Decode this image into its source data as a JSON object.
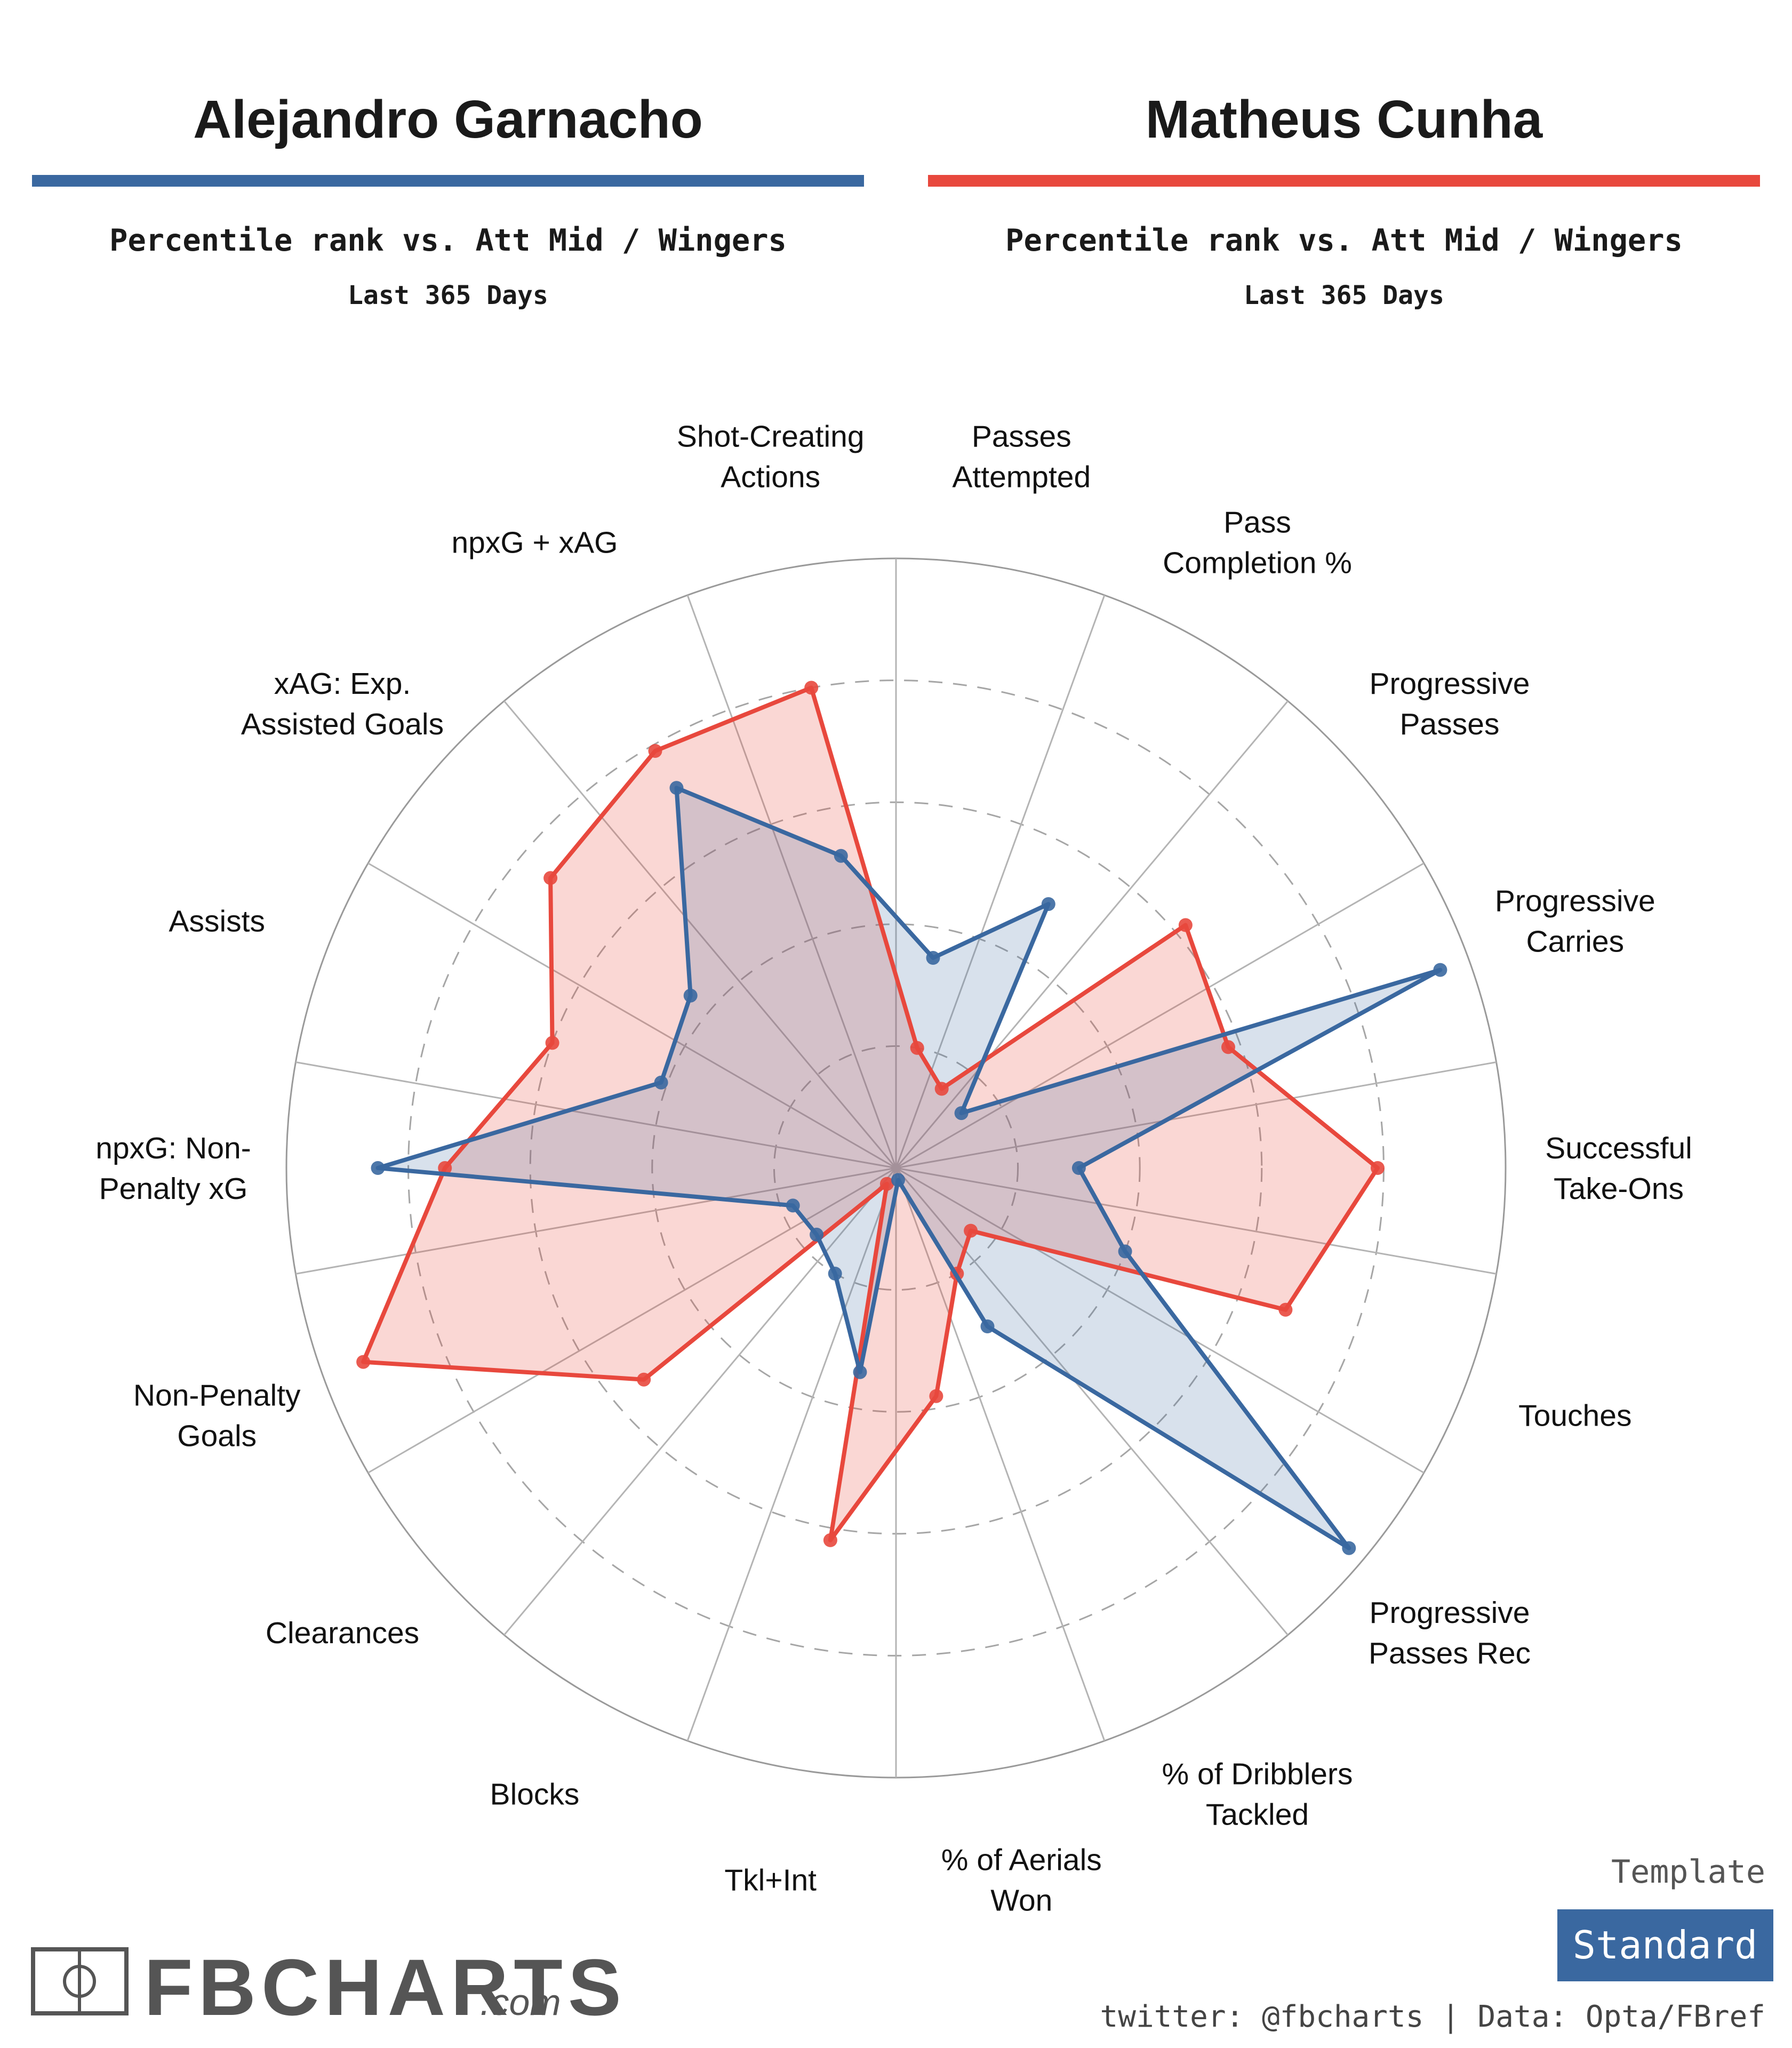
{
  "header": {
    "players": [
      {
        "name": "Alejandro Garnacho",
        "subtitle": "Percentile rank vs. Att Mid / Wingers",
        "period": "Last 365 Days",
        "color": "#3a68a0"
      },
      {
        "name": "Matheus Cunha",
        "subtitle": "Percentile rank vs. Att Mid / Wingers",
        "period": "Last 365 Days",
        "color": "#e8483d"
      }
    ]
  },
  "chart_data": {
    "type": "radar",
    "scale": [
      0,
      100
    ],
    "gridlines": [
      20,
      40,
      60,
      80,
      100
    ],
    "categories": [
      "Passes Attempted",
      "Pass Completion %",
      "Progressive Passes",
      "Progressive Carries",
      "Successful Take-Ons",
      "Touches",
      "Progressive Passes Rec",
      "% of Dribblers Tackled",
      "% of Aerials Won",
      "Tkl+Int",
      "Blocks",
      "Clearances",
      "Non-Penalty Goals",
      "npxG: Non-Penalty xG",
      "Assists",
      "xAG: Exp. Assisted Goals",
      "npxG + xAG",
      "Shot-Creating Actions"
    ],
    "category_lines": [
      [
        "Passes",
        "Attempted"
      ],
      [
        "Pass",
        "Completion %"
      ],
      [
        "Progressive",
        "Passes"
      ],
      [
        "Progressive",
        "Carries"
      ],
      [
        "Successful",
        "Take-Ons"
      ],
      [
        "Touches"
      ],
      [
        "Progressive",
        "Passes Rec"
      ],
      [
        "% of Dribblers",
        "Tackled"
      ],
      [
        "% of Aerials",
        "Won"
      ],
      [
        "Tkl+Int"
      ],
      [
        "Blocks"
      ],
      [
        "Clearances"
      ],
      [
        "Non-Penalty",
        "Goals"
      ],
      [
        "npxG: Non-",
        "Penalty xG"
      ],
      [
        "Assists"
      ],
      [
        "xAG: Exp.",
        "Assisted Goals"
      ],
      [
        "npxG + xAG"
      ],
      [
        "Shot-Creating",
        "Actions"
      ]
    ],
    "series": [
      {
        "name": "Matheus Cunha",
        "color": "#e8483d",
        "values": [
          20,
          15,
          62,
          58,
          79,
          68,
          16,
          20,
          38,
          62,
          3,
          54,
          93,
          74,
          60,
          74,
          79,
          80
        ]
      },
      {
        "name": "Alejandro Garnacho",
        "color": "#3a68a0",
        "values": [
          35,
          50,
          14,
          95,
          30,
          40,
          97,
          30,
          2,
          34,
          20,
          17,
          18,
          85,
          41,
          44,
          72,
          52
        ]
      }
    ]
  },
  "template": {
    "label": "Template",
    "value": "Standard",
    "color": "#3a68a0"
  },
  "footer": {
    "logo": "FBCHARTS",
    "logo_suffix": ".com",
    "credit": "twitter: @fbcharts | Data: Opta/FBref"
  }
}
